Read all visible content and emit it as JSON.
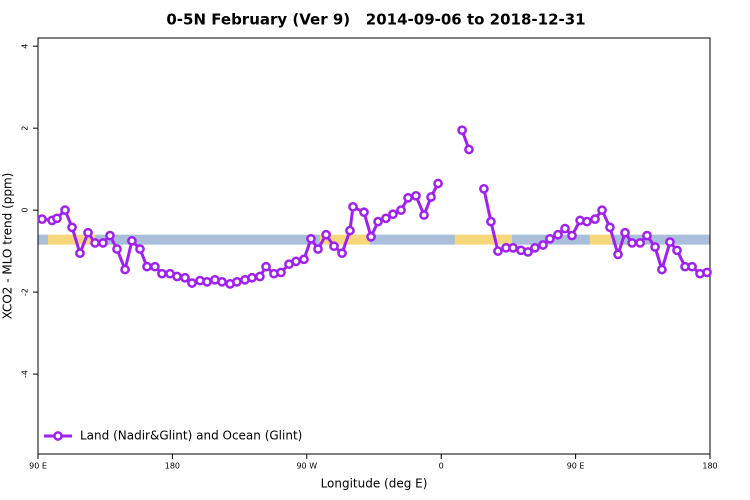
{
  "chart_data": {
    "type": "line",
    "title": "0-5N February (Ver 9)   2014-09-06 to 2018-12-31",
    "xlabel": "Longitude (deg E)",
    "ylabel": "XCO2 - MLO trend (ppm)",
    "xlim": [
      90,
      540
    ],
    "ylim": [
      -5.95,
      4.2
    ],
    "xticks": [
      {
        "value": 90,
        "label": "90 E"
      },
      180,
      {
        "value": 270,
        "label": "90 W"
      },
      {
        "value": 360,
        "label": "0"
      },
      {
        "value": 450,
        "label": "90 E"
      },
      {
        "value": 540,
        "label": "180"
      }
    ],
    "yticks": [
      -4,
      -2,
      0,
      2,
      4
    ],
    "legend": "bottom-left",
    "series": [
      {
        "name": "Land (Nadir&Glint) and Ocean (Glint)",
        "color": "#a020f0",
        "x": [
          92.7,
          99.4,
          102.7,
          108.1,
          112.8,
          118.1,
          123.5,
          128.2,
          133.5,
          138.2,
          142.9,
          148.3,
          152.9,
          158.3,
          163.0,
          168.3,
          173.0,
          178.4,
          183.1,
          188.4,
          193.1,
          198.5,
          203.2,
          208.5,
          213.2,
          218.6,
          223.2,
          228.6,
          233.3,
          238.6,
          242.7,
          248.0,
          252.7,
          258.1,
          262.8,
          268.1,
          272.8,
          277.5,
          282.9,
          288.2,
          293.6,
          298.9,
          300.9,
          308.3,
          313.0,
          317.7,
          323.0,
          327.7,
          333.1,
          337.8,
          343.1,
          348.5,
          353.2,
          357.9,
          366.0,
          374.0,
          378.6,
          383.6,
          388.6,
          393.3,
          398.0,
          403.4,
          408.1,
          413.4,
          418.1,
          422.8,
          428.2,
          432.8,
          438.2,
          442.9,
          447.6,
          453.0,
          457.6,
          463.0,
          467.7,
          473.0,
          478.4,
          483.1,
          487.8,
          493.2,
          497.8,
          503.2,
          507.8,
          513.2,
          517.9,
          523.3,
          528.0,
          533.3,
          538.0
        ],
        "values": [
          -0.22,
          -0.25,
          -0.2,
          0.0,
          -0.42,
          -1.05,
          -0.55,
          -0.8,
          -0.8,
          -0.62,
          -0.95,
          -1.45,
          -0.75,
          -0.95,
          -1.38,
          -1.38,
          -1.55,
          -1.55,
          -1.62,
          -1.65,
          -1.78,
          -1.72,
          -1.75,
          -1.7,
          -1.75,
          -1.8,
          -1.75,
          -1.7,
          -1.65,
          -1.62,
          -1.38,
          -1.55,
          -1.52,
          -1.32,
          -1.25,
          -1.2,
          -0.7,
          -0.95,
          -0.6,
          -0.88,
          -1.05,
          -0.5,
          0.08,
          -0.05,
          -0.65,
          -0.28,
          -0.2,
          -0.1,
          0.0,
          0.3,
          0.35,
          -0.12,
          0.32,
          0.65,
          null,
          1.95,
          1.48,
          null,
          0.52,
          -0.28,
          -1.0,
          -0.92,
          -0.92,
          -0.98,
          -1.02,
          -0.92,
          -0.85,
          -0.7,
          -0.6,
          -0.45,
          -0.62,
          -0.25,
          -0.28,
          -0.22,
          0.0,
          -0.42,
          -1.08,
          -0.55,
          -0.8,
          -0.8,
          -0.62,
          -0.9,
          -1.45,
          -0.78,
          -0.98,
          -1.38,
          -1.38,
          -1.55,
          -1.52
        ]
      }
    ],
    "surface_band": {
      "y": -0.72,
      "segments": [
        {
          "from": 90,
          "to": 96.7,
          "color": "#a9bedb"
        },
        {
          "from": 96.7,
          "to": 128.2,
          "color": "#f6d77c"
        },
        {
          "from": 128.2,
          "to": 278.8,
          "color": "#a9bedb"
        },
        {
          "from": 278.8,
          "to": 312.3,
          "color": "#f6d77c"
        },
        {
          "from": 312.3,
          "to": 369.2,
          "color": "#a9bedb"
        },
        {
          "from": 369.2,
          "to": 407.4,
          "color": "#f6d77c"
        },
        {
          "from": 407.4,
          "to": 459.6,
          "color": "#a9bedb"
        },
        {
          "from": 459.6,
          "to": 474.3,
          "color": "#f6d77c"
        },
        {
          "from": 474.3,
          "to": 540,
          "color": "#a9bedb"
        }
      ]
    }
  }
}
